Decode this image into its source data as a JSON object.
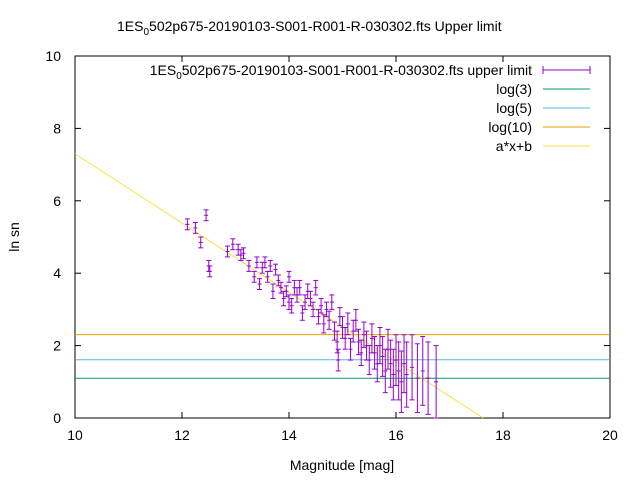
{
  "chart_data": {
    "type": "scatter",
    "title_prefix": "1ES",
    "title_sub": "0",
    "title_suffix": "502p675-20190103-S001-R001-R-030302.fts Upper limit",
    "xlabel": "Magnitude [mag]",
    "ylabel": "ln sn",
    "xlim": [
      10,
      20
    ],
    "ylim": [
      0,
      10
    ],
    "xticks": [
      10,
      12,
      14,
      16,
      18,
      20
    ],
    "yticks": [
      0,
      2,
      4,
      6,
      8,
      10
    ],
    "grid": false,
    "legend_position": "top-right",
    "series": [
      {
        "name_prefix": "1ES",
        "name_sub": "0",
        "name_suffix": "502p675-20190103-S001-R001-R-030302.fts upper limit",
        "kind": "errorbars",
        "color": "#9400d3",
        "points": [
          [
            12.1,
            5.35,
            0.15
          ],
          [
            12.25,
            5.25,
            0.15
          ],
          [
            12.35,
            4.85,
            0.15
          ],
          [
            12.45,
            5.6,
            0.15
          ],
          [
            12.5,
            4.2,
            0.15
          ],
          [
            12.52,
            4.05,
            0.15
          ],
          [
            12.85,
            4.6,
            0.15
          ],
          [
            12.95,
            4.8,
            0.15
          ],
          [
            13.05,
            4.65,
            0.15
          ],
          [
            13.1,
            4.5,
            0.15
          ],
          [
            13.15,
            4.55,
            0.15
          ],
          [
            13.25,
            4.2,
            0.15
          ],
          [
            13.35,
            3.9,
            0.15
          ],
          [
            13.4,
            4.3,
            0.15
          ],
          [
            13.45,
            3.7,
            0.15
          ],
          [
            13.5,
            4.15,
            0.15
          ],
          [
            13.55,
            4.3,
            0.15
          ],
          [
            13.6,
            3.9,
            0.15
          ],
          [
            13.65,
            4.2,
            0.15
          ],
          [
            13.7,
            3.5,
            0.2
          ],
          [
            13.75,
            4.1,
            0.15
          ],
          [
            13.8,
            3.8,
            0.15
          ],
          [
            13.85,
            3.6,
            0.15
          ],
          [
            13.9,
            3.3,
            0.2
          ],
          [
            13.95,
            3.5,
            0.15
          ],
          [
            14.0,
            3.2,
            0.2
          ],
          [
            14.0,
            3.9,
            0.15
          ],
          [
            14.05,
            3.1,
            0.2
          ],
          [
            14.1,
            3.6,
            0.2
          ],
          [
            14.15,
            3.4,
            0.2
          ],
          [
            14.2,
            3.6,
            0.2
          ],
          [
            14.25,
            2.9,
            0.2
          ],
          [
            14.3,
            3.2,
            0.2
          ],
          [
            14.35,
            3.5,
            0.2
          ],
          [
            14.4,
            3.3,
            0.2
          ],
          [
            14.45,
            3.0,
            0.2
          ],
          [
            14.5,
            3.6,
            0.2
          ],
          [
            14.55,
            2.8,
            0.2
          ],
          [
            14.6,
            3.1,
            0.2
          ],
          [
            14.65,
            2.6,
            0.25
          ],
          [
            14.7,
            3.0,
            0.2
          ],
          [
            14.75,
            2.7,
            0.25
          ],
          [
            14.8,
            3.2,
            0.2
          ],
          [
            14.85,
            2.4,
            0.25
          ],
          [
            14.9,
            2.1,
            0.3
          ],
          [
            14.92,
            1.6,
            0.3
          ],
          [
            14.95,
            2.8,
            0.25
          ],
          [
            15.0,
            2.5,
            0.3
          ],
          [
            15.05,
            2.2,
            0.3
          ],
          [
            15.1,
            2.6,
            0.3
          ],
          [
            15.15,
            1.9,
            0.3
          ],
          [
            15.2,
            2.4,
            0.3
          ],
          [
            15.25,
            2.7,
            0.3
          ],
          [
            15.3,
            2.1,
            0.35
          ],
          [
            15.35,
            1.8,
            0.35
          ],
          [
            15.4,
            2.3,
            0.35
          ],
          [
            15.45,
            2.0,
            0.4
          ],
          [
            15.5,
            1.6,
            0.4
          ],
          [
            15.55,
            2.2,
            0.4
          ],
          [
            15.6,
            1.8,
            0.45
          ],
          [
            15.65,
            1.5,
            0.5
          ],
          [
            15.7,
            2.0,
            0.5
          ],
          [
            15.75,
            1.7,
            0.55
          ],
          [
            15.8,
            1.3,
            0.6
          ],
          [
            15.85,
            1.9,
            0.55
          ],
          [
            15.9,
            1.5,
            0.65
          ],
          [
            15.95,
            1.2,
            0.7
          ],
          [
            16.0,
            1.6,
            0.7
          ],
          [
            16.05,
            1.3,
            0.8
          ],
          [
            16.1,
            1.0,
            0.85
          ],
          [
            16.15,
            1.5,
            0.8
          ],
          [
            16.2,
            1.2,
            0.9
          ],
          [
            16.3,
            1.4,
            0.9
          ],
          [
            16.4,
            1.1,
            0.95
          ],
          [
            16.5,
            1.3,
            0.95
          ],
          [
            16.6,
            1.1,
            1.0
          ],
          [
            16.75,
            1.0,
            1.0
          ]
        ]
      },
      {
        "name": "log(3)",
        "kind": "hline",
        "value": 1.0986,
        "color": "#009e73"
      },
      {
        "name": "log(5)",
        "kind": "hline",
        "value": 1.6094,
        "color": "#56b4e9"
      },
      {
        "name": "log(10)",
        "kind": "hline",
        "value": 2.3026,
        "color": "#e69f00"
      },
      {
        "name": "a*x+b",
        "kind": "line",
        "slope": -0.957,
        "intercept": 16.87,
        "color": "#f0e442"
      }
    ]
  }
}
